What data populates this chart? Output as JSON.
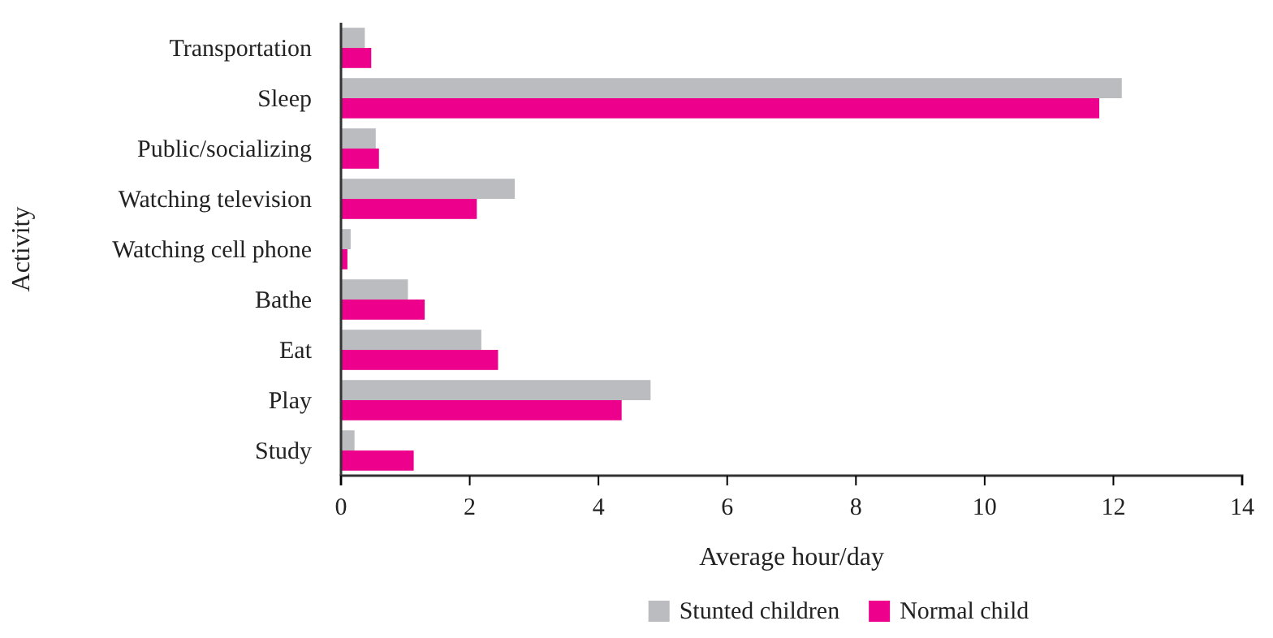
{
  "chart_data": {
    "type": "bar",
    "orientation": "horizontal",
    "xlabel": "Average hour/day",
    "ylabel": "Activity",
    "categories": [
      "Transportation",
      "Sleep",
      "Public/socializing",
      "Watching television",
      "Watching cell phone",
      "Bathe",
      "Eat",
      "Play",
      "Study"
    ],
    "series": [
      {
        "name": "Stunted children",
        "color": "#bbbcc0",
        "values": [
          0.37,
          12.13,
          0.54,
          2.7,
          0.15,
          1.04,
          2.18,
          4.81,
          0.21
        ]
      },
      {
        "name": "Normal child",
        "color": "#ec008c",
        "values": [
          0.47,
          11.78,
          0.59,
          2.11,
          0.1,
          1.3,
          2.44,
          4.36,
          1.13
        ]
      }
    ],
    "xlim": [
      0,
      14
    ],
    "xticks": [
      0,
      2,
      4,
      6,
      8,
      10,
      12,
      14
    ],
    "grid": false,
    "legend": "bottom"
  }
}
